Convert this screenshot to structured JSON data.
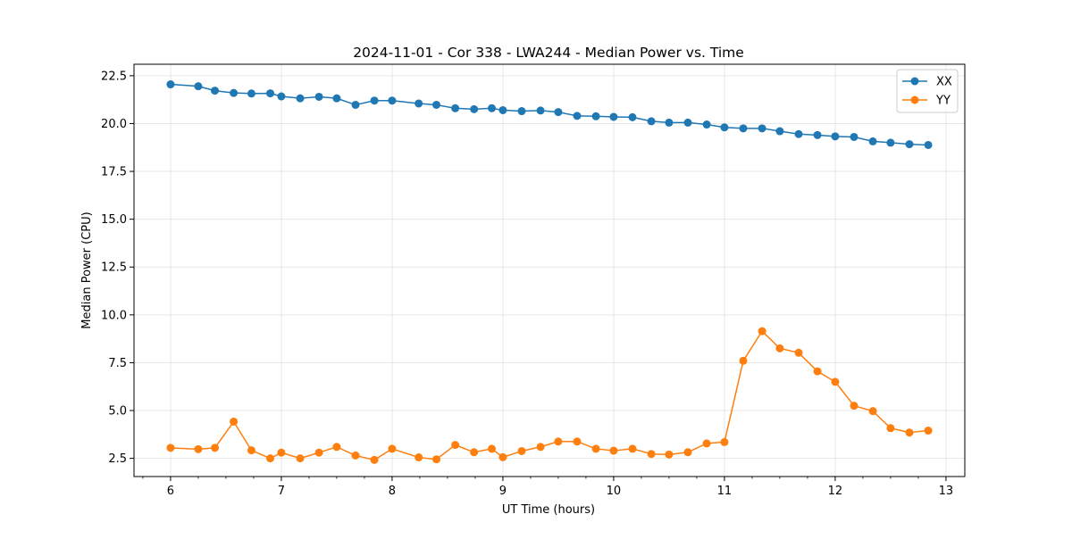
{
  "chart_data": {
    "type": "line",
    "title": "2024-11-01 - Cor 338 - LWA244 - Median Power vs. Time",
    "xlabel": "UT Time (hours)",
    "ylabel": "Median Power (CPU)",
    "xlim": [
      5.67,
      13.17
    ],
    "ylim": [
      1.55,
      23.1
    ],
    "xticks": [
      6,
      7,
      8,
      9,
      10,
      11,
      12,
      13
    ],
    "xtick_labels": [
      "6",
      "7",
      "8",
      "9",
      "10",
      "11",
      "12",
      "13"
    ],
    "yticks": [
      2.5,
      5.0,
      7.5,
      10.0,
      12.5,
      15.0,
      17.5,
      20.0,
      22.5
    ],
    "ytick_labels": [
      "2.5",
      "5.0",
      "7.5",
      "10.0",
      "12.5",
      "15.0",
      "17.5",
      "20.0",
      "22.5"
    ],
    "grid": true,
    "legend_position": "top-right",
    "x": [
      6.0,
      6.25,
      6.4,
      6.57,
      6.73,
      6.9,
      7.0,
      7.17,
      7.34,
      7.5,
      7.67,
      7.84,
      8.0,
      8.24,
      8.4,
      8.57,
      8.74,
      8.9,
      9.0,
      9.17,
      9.34,
      9.5,
      9.67,
      9.84,
      10.0,
      10.17,
      10.34,
      10.5,
      10.67,
      10.84,
      11.0,
      11.17,
      11.34,
      11.5,
      11.67,
      11.84,
      12.0,
      12.17,
      12.34,
      12.5,
      12.67,
      12.84
    ],
    "series": [
      {
        "name": "XX",
        "color": "#1f77b4",
        "values": [
          22.05,
          21.95,
          21.72,
          21.6,
          21.57,
          21.58,
          21.42,
          21.32,
          21.4,
          21.32,
          20.98,
          21.2,
          21.2,
          21.05,
          20.98,
          20.8,
          20.75,
          20.8,
          20.7,
          20.65,
          20.68,
          20.6,
          20.4,
          20.38,
          20.35,
          20.33,
          20.12,
          20.05,
          20.05,
          19.95,
          19.8,
          19.75,
          19.75,
          19.6,
          19.45,
          19.4,
          19.33,
          19.3,
          19.07,
          19.0,
          18.92,
          18.88
        ]
      },
      {
        "name": "YY",
        "color": "#ff7f0e",
        "values": [
          3.05,
          2.98,
          3.05,
          4.42,
          2.92,
          2.5,
          2.8,
          2.5,
          2.8,
          3.1,
          2.65,
          2.42,
          3.0,
          2.55,
          2.45,
          3.2,
          2.82,
          3.0,
          2.56,
          2.88,
          3.1,
          3.38,
          3.38,
          3.0,
          2.9,
          3.0,
          2.73,
          2.7,
          2.82,
          3.28,
          3.35,
          7.6,
          9.15,
          8.25,
          8.02,
          7.05,
          6.5,
          5.25,
          4.97,
          4.08,
          3.85,
          3.95
        ]
      }
    ]
  }
}
